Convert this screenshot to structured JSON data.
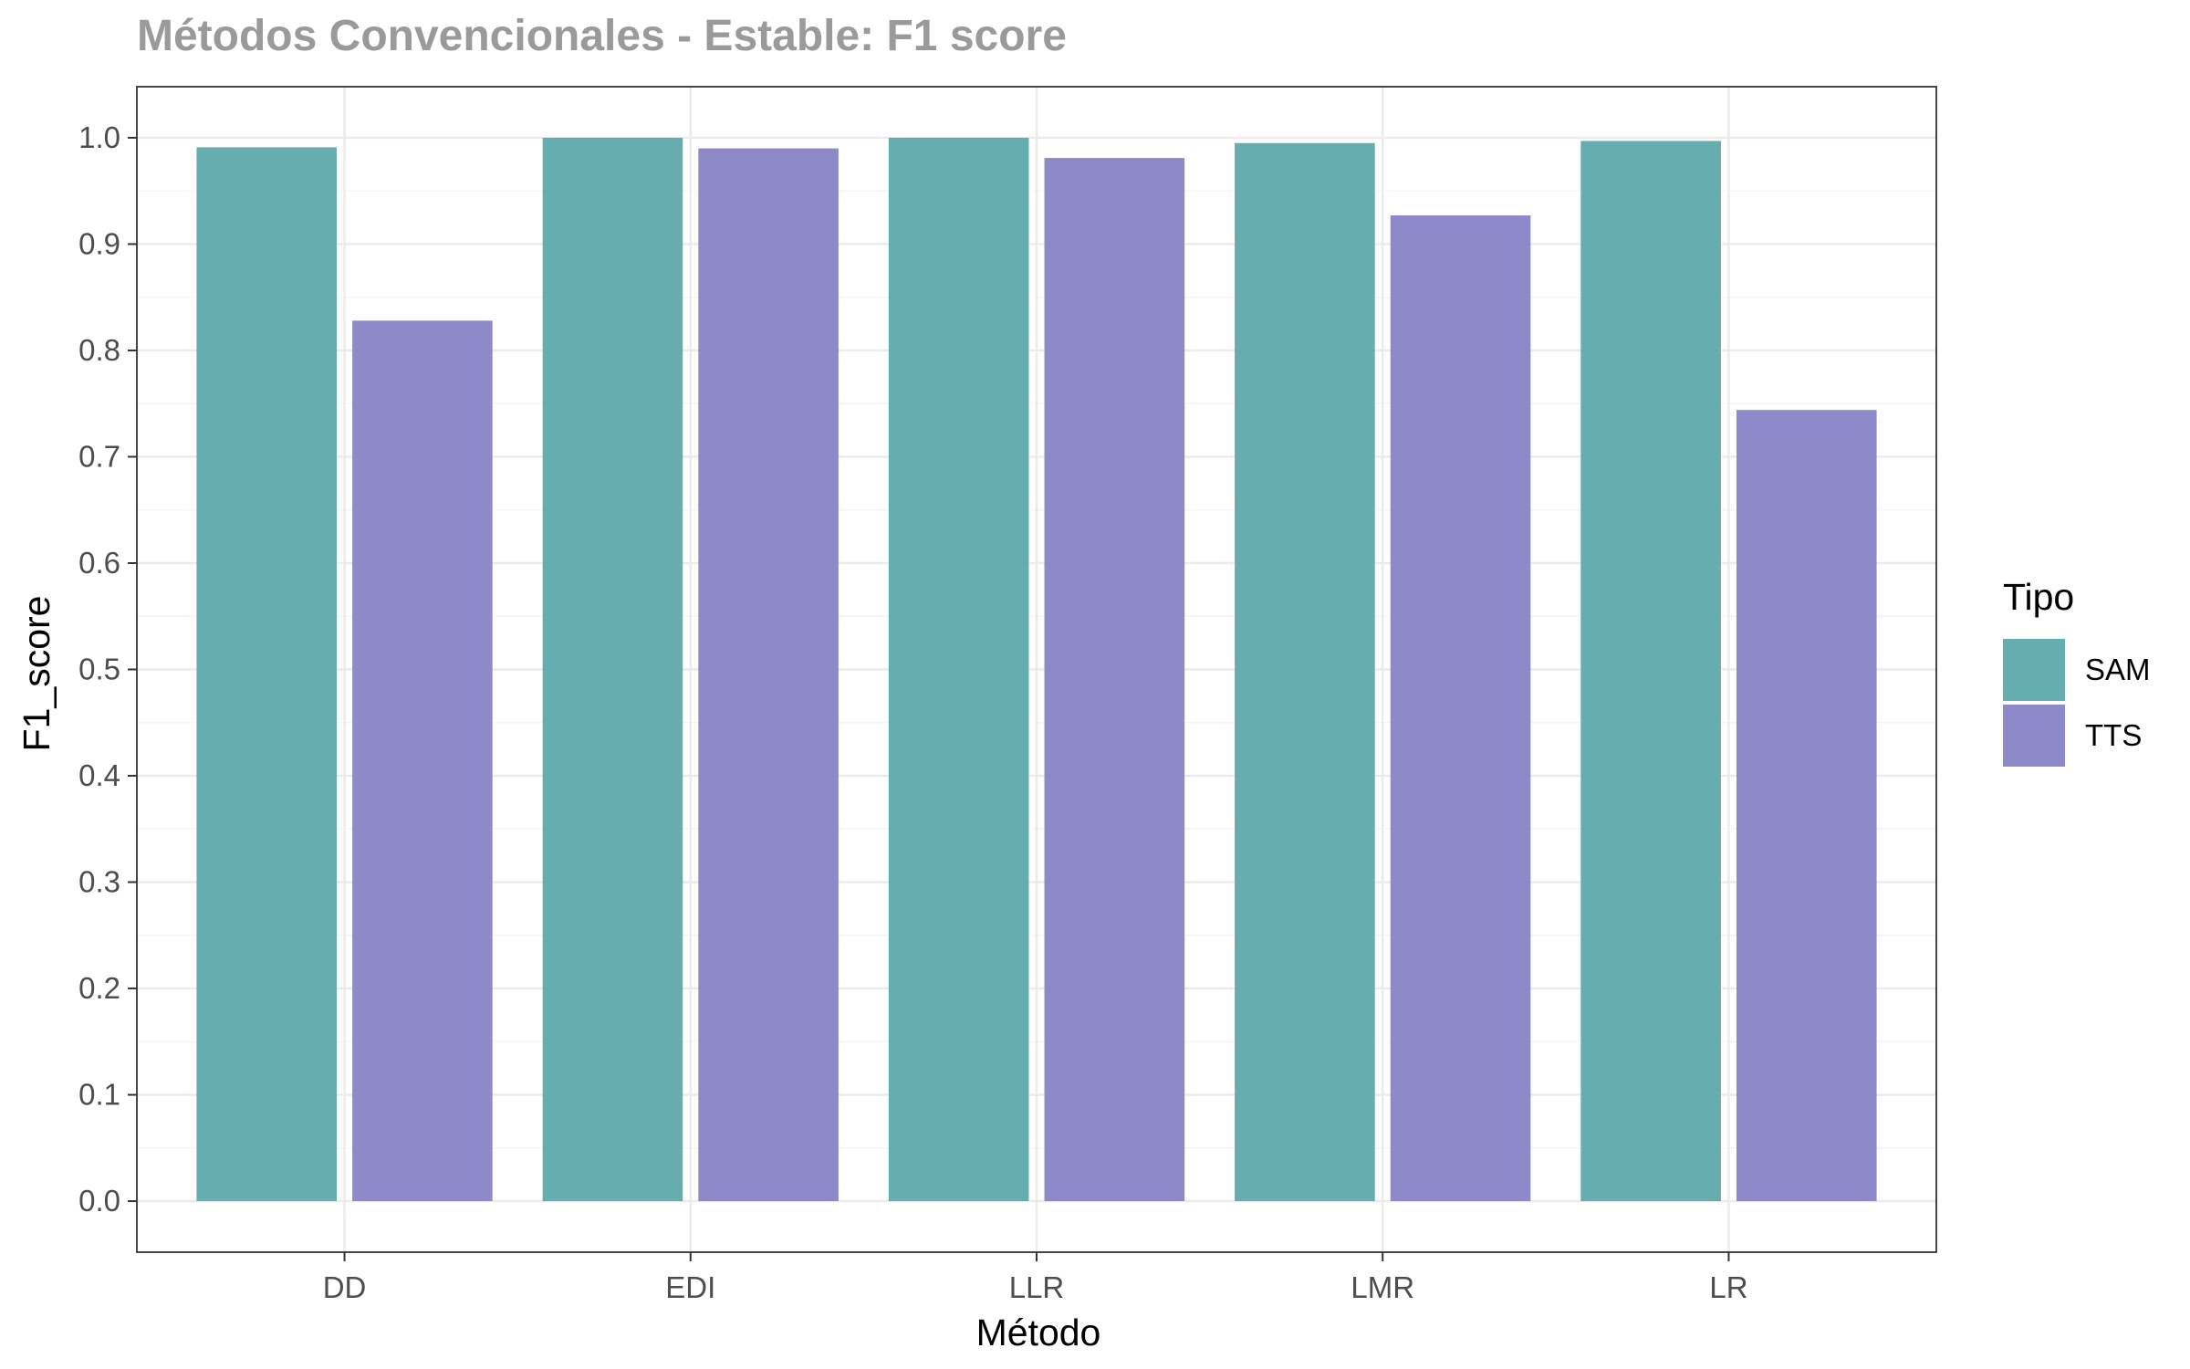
{
  "chart_data": {
    "type": "bar",
    "title": "Métodos Convencionales - Estable: F1 score",
    "xlabel": "Método",
    "ylabel": "F1_score",
    "categories": [
      "DD",
      "EDI",
      "LLR",
      "LMR",
      "LR"
    ],
    "series": [
      {
        "name": "SAM",
        "color": "#5aa7aa",
        "values": [
          0.991,
          1.0,
          1.0,
          0.995,
          0.997
        ]
      },
      {
        "name": "TTS",
        "color": "#8581c5",
        "values": [
          0.828,
          0.99,
          0.981,
          0.927,
          0.744
        ]
      }
    ],
    "ylim": [
      -0.048,
      1.048
    ],
    "yticks": [
      0.0,
      0.1,
      0.2,
      0.3,
      0.4,
      0.5,
      0.6,
      0.7,
      0.8,
      0.9,
      1.0
    ],
    "ytick_labels": [
      "0.0",
      "0.1",
      "0.2",
      "0.3",
      "0.4",
      "0.5",
      "0.6",
      "0.7",
      "0.8",
      "0.9",
      "1.0"
    ],
    "legend": {
      "title": "Tipo",
      "position": "right"
    },
    "grid": true
  }
}
